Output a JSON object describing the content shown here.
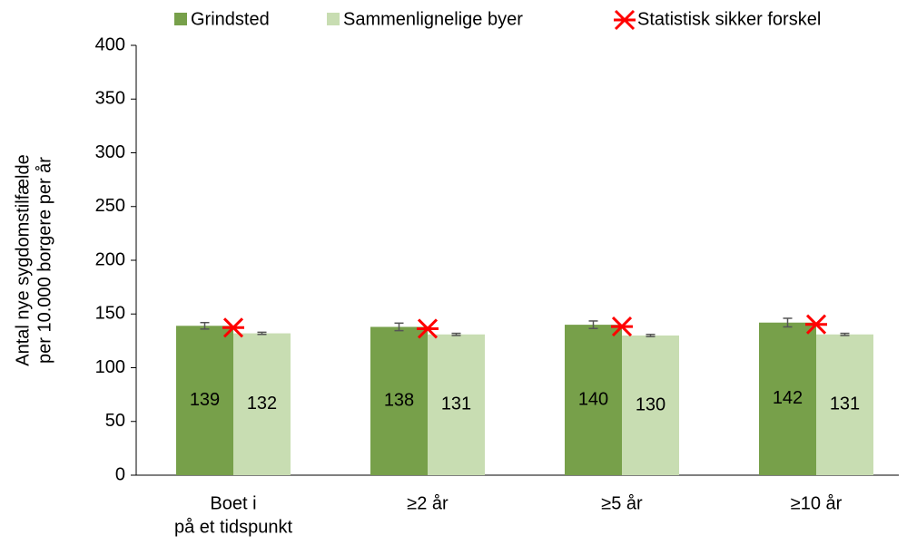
{
  "chart_data": {
    "type": "bar",
    "y_label": [
      "Antal nye sygdomstilfælde",
      "per 10.000 borgere per år"
    ],
    "categories": [
      [
        "Boet i",
        "på et tidspunkt"
      ],
      [
        "≥2 år"
      ],
      [
        "≥5 år"
      ],
      [
        "≥10 år"
      ]
    ],
    "series": [
      {
        "name": "Grindsted",
        "color": "#77a04a",
        "values": [
          139,
          138,
          140,
          142
        ],
        "errors": [
          3,
          3.5,
          3.5,
          4
        ]
      },
      {
        "name": "Sammenlignelige byer",
        "color": "#c8ddb2",
        "values": [
          132,
          131,
          130,
          131
        ],
        "errors": [
          1,
          1,
          1,
          1
        ]
      }
    ],
    "significance_label": "Statistisk sikker forskel",
    "significance_color": "#ff0000",
    "significant": [
      true,
      true,
      true,
      true
    ],
    "ylim": [
      0,
      400
    ],
    "yticks": [
      0,
      50,
      100,
      150,
      200,
      250,
      300,
      350,
      400
    ],
    "legend": "top",
    "grid": false
  }
}
